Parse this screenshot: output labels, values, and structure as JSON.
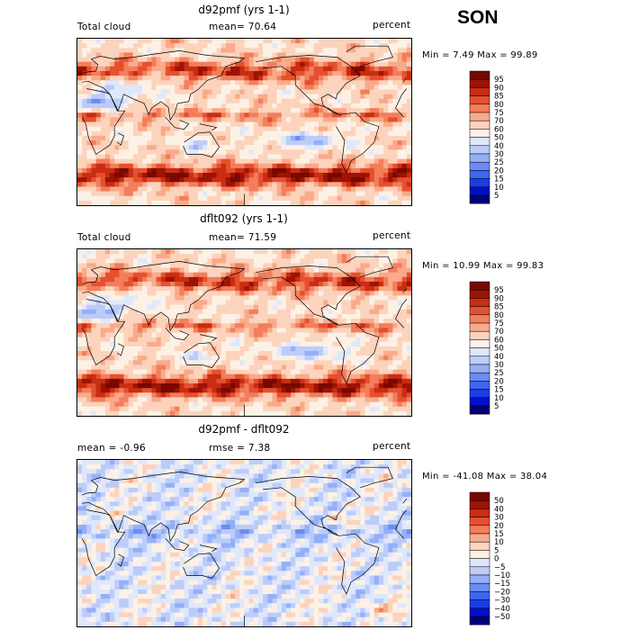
{
  "season": "SON",
  "panels": [
    {
      "title": "d92pmf (yrs 1-1)",
      "left_label": "Total cloud",
      "center_label": "mean=  70.64",
      "units": "percent",
      "minmax": "Min =   7.49 Max =  99.89",
      "colorbar_labels": [
        "95",
        "90",
        "85",
        "80",
        "75",
        "70",
        "60",
        "50",
        "40",
        "30",
        "25",
        "20",
        "15",
        "10",
        "5"
      ]
    },
    {
      "title": "dflt092 (yrs 1-1)",
      "left_label": "Total cloud",
      "center_label": "mean=  71.59",
      "units": "percent",
      "minmax": "Min =  10.99 Max =  99.83",
      "colorbar_labels": [
        "95",
        "90",
        "85",
        "80",
        "75",
        "70",
        "60",
        "50",
        "40",
        "30",
        "25",
        "20",
        "15",
        "10",
        "5"
      ]
    },
    {
      "title": "d92pmf - dflt092",
      "left_label": "mean =  -0.96",
      "center_label": "rmse =   7.38",
      "units": "percent",
      "minmax": "Min = -41.08 Max =  38.04",
      "colorbar_labels": [
        "50",
        "40",
        "30",
        "20",
        "15",
        "10",
        "5",
        "0",
        "−5",
        "−10",
        "−15",
        "−20",
        "−30",
        "−40",
        "−50"
      ]
    }
  ],
  "chart_data": [
    {
      "type": "heatmap",
      "title": "d92pmf (yrs 1-1)",
      "variable": "Total cloud",
      "units": "percent",
      "mean": 70.64,
      "min": 7.49,
      "max": 99.89,
      "colorbar_levels": [
        5,
        10,
        15,
        20,
        25,
        30,
        40,
        50,
        60,
        70,
        75,
        80,
        85,
        90,
        95
      ],
      "colors_low_to_high": [
        "#00007a",
        "#0010c8",
        "#1a3ee6",
        "#3c66f0",
        "#6a8df4",
        "#95aff7",
        "#bcccf9",
        "#dfe8fb",
        "#fdf1e6",
        "#fcd3bc",
        "#f9aa8a",
        "#f27e5c",
        "#e5502f",
        "#c92d12",
        "#9d1304",
        "#770900"
      ]
    },
    {
      "type": "heatmap",
      "title": "dflt092 (yrs 1-1)",
      "variable": "Total cloud",
      "units": "percent",
      "mean": 71.59,
      "min": 10.99,
      "max": 99.83,
      "colorbar_levels": [
        5,
        10,
        15,
        20,
        25,
        30,
        40,
        50,
        60,
        70,
        75,
        80,
        85,
        90,
        95
      ],
      "colors_low_to_high": [
        "#00007a",
        "#0010c8",
        "#1a3ee6",
        "#3c66f0",
        "#6a8df4",
        "#95aff7",
        "#bcccf9",
        "#dfe8fb",
        "#fdf1e6",
        "#fcd3bc",
        "#f9aa8a",
        "#f27e5c",
        "#e5502f",
        "#c92d12",
        "#9d1304",
        "#770900"
      ]
    },
    {
      "type": "heatmap",
      "title": "d92pmf - dflt092",
      "units": "percent",
      "mean": -0.96,
      "rmse": 7.38,
      "min": -41.08,
      "max": 38.04,
      "colorbar_levels": [
        -50,
        -40,
        -30,
        -20,
        -15,
        -10,
        -5,
        0,
        5,
        10,
        15,
        20,
        30,
        40,
        50
      ],
      "colors_low_to_high": [
        "#00007a",
        "#0010c8",
        "#1a3ee6",
        "#3c66f0",
        "#6a8df4",
        "#95aff7",
        "#bcccf9",
        "#dfe8fb",
        "#fdf1e6",
        "#fcd3bc",
        "#f9aa8a",
        "#f27e5c",
        "#e5502f",
        "#c92d12",
        "#9d1304",
        "#770900"
      ]
    }
  ]
}
